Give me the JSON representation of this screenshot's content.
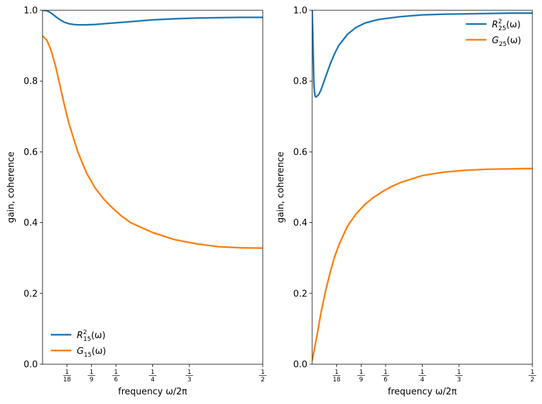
{
  "colors": {
    "series1": "#1f77b4",
    "series2": "#ff7f0e"
  },
  "chart_data": [
    {
      "type": "line",
      "xlabel": "frequency ω/2π",
      "ylabel": "gain, coherence",
      "xlim": [
        0,
        0.5
      ],
      "ylim": [
        0.0,
        1.0
      ],
      "xticks": [
        {
          "value": 0.0556,
          "num": "1",
          "den": "18"
        },
        {
          "value": 0.1111,
          "num": "1",
          "den": "9"
        },
        {
          "value": 0.1667,
          "num": "1",
          "den": "6"
        },
        {
          "value": 0.25,
          "num": "1",
          "den": "4"
        },
        {
          "value": 0.3333,
          "num": "1",
          "den": "3"
        },
        {
          "value": 0.5,
          "num": "1",
          "den": "2"
        }
      ],
      "yticks": [
        "0.0",
        "0.2",
        "0.4",
        "0.6",
        "0.8",
        "1.0"
      ],
      "legend_position": "lower left",
      "series": [
        {
          "name": "R²₁₅(ω)",
          "legend_main": "R",
          "legend_sup": "2",
          "legend_sub": "15",
          "legend_tail": "(ω)",
          "color": "#1f77b4",
          "x": [
            0,
            0.01,
            0.02,
            0.03,
            0.04,
            0.05,
            0.06,
            0.07,
            0.08,
            0.09,
            0.1,
            0.12,
            0.14,
            0.16,
            0.2,
            0.25,
            0.3,
            0.35,
            0.4,
            0.45,
            0.5
          ],
          "y": [
            1.0,
            0.999,
            0.992,
            0.982,
            0.973,
            0.966,
            0.962,
            0.96,
            0.959,
            0.959,
            0.959,
            0.96,
            0.962,
            0.964,
            0.968,
            0.973,
            0.976,
            0.978,
            0.979,
            0.98,
            0.98
          ]
        },
        {
          "name": "G₁₅(ω)",
          "legend_main": "G",
          "legend_sup": "",
          "legend_sub": "15",
          "legend_tail": "(ω)",
          "color": "#ff7f0e",
          "x": [
            0,
            0.01,
            0.02,
            0.03,
            0.04,
            0.05,
            0.06,
            0.08,
            0.1,
            0.12,
            0.14,
            0.16,
            0.18,
            0.2,
            0.25,
            0.3,
            0.35,
            0.4,
            0.45,
            0.5
          ],
          "y": [
            0.928,
            0.915,
            0.885,
            0.84,
            0.785,
            0.73,
            0.68,
            0.6,
            0.54,
            0.497,
            0.465,
            0.44,
            0.418,
            0.4,
            0.372,
            0.352,
            0.34,
            0.332,
            0.329,
            0.328
          ]
        }
      ]
    },
    {
      "type": "line",
      "xlabel": "frequency ω/2π",
      "ylabel": "gain, coherence",
      "xlim": [
        0,
        0.5
      ],
      "ylim": [
        0.0,
        1.0
      ],
      "xticks": [
        {
          "value": 0.0556,
          "num": "1",
          "den": "18"
        },
        {
          "value": 0.1111,
          "num": "1",
          "den": "9"
        },
        {
          "value": 0.1667,
          "num": "1",
          "den": "6"
        },
        {
          "value": 0.25,
          "num": "1",
          "den": "4"
        },
        {
          "value": 0.3333,
          "num": "1",
          "den": "3"
        },
        {
          "value": 0.5,
          "num": "1",
          "den": "2"
        }
      ],
      "yticks": [
        "0.0",
        "0.2",
        "0.4",
        "0.6",
        "0.8",
        "1.0"
      ],
      "legend_position": "upper right",
      "series": [
        {
          "name": "R²₂₅(ω)",
          "legend_main": "R",
          "legend_sup": "2",
          "legend_sub": "25",
          "legend_tail": "(ω)",
          "color": "#1f77b4",
          "x": [
            0,
            0.002,
            0.004,
            0.006,
            0.008,
            0.01,
            0.015,
            0.02,
            0.03,
            0.04,
            0.05,
            0.06,
            0.08,
            0.1,
            0.12,
            0.15,
            0.2,
            0.25,
            0.3,
            0.35,
            0.4,
            0.45,
            0.5
          ],
          "y": [
            1.0,
            0.9,
            0.79,
            0.76,
            0.755,
            0.756,
            0.762,
            0.775,
            0.81,
            0.845,
            0.875,
            0.9,
            0.932,
            0.952,
            0.964,
            0.974,
            0.982,
            0.987,
            0.989,
            0.99,
            0.991,
            0.992,
            0.992
          ]
        },
        {
          "name": "G₂₅(ω)",
          "legend_main": "G",
          "legend_sup": "",
          "legend_sub": "25",
          "legend_tail": "(ω)",
          "color": "#ff7f0e",
          "x": [
            0,
            0.01,
            0.02,
            0.03,
            0.04,
            0.05,
            0.06,
            0.08,
            0.1,
            0.12,
            0.14,
            0.16,
            0.18,
            0.2,
            0.25,
            0.3,
            0.35,
            0.4,
            0.45,
            0.5
          ],
          "y": [
            0.01,
            0.075,
            0.145,
            0.205,
            0.255,
            0.3,
            0.335,
            0.39,
            0.425,
            0.452,
            0.472,
            0.488,
            0.502,
            0.513,
            0.533,
            0.543,
            0.548,
            0.551,
            0.552,
            0.553
          ]
        }
      ]
    }
  ]
}
